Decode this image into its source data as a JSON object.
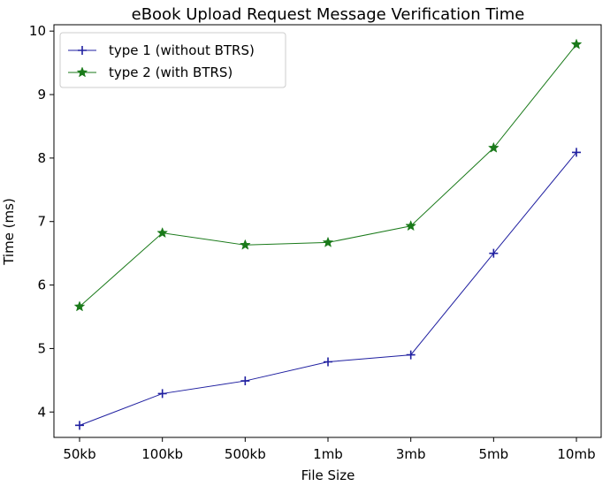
{
  "chart_data": {
    "type": "line",
    "title": "eBook Upload Request Message Verification Time",
    "xlabel": "File Size",
    "ylabel": "Time (ms)",
    "categories": [
      "50kb",
      "100kb",
      "500kb",
      "1mb",
      "3mb",
      "5mb",
      "10mb"
    ],
    "ylim": [
      3.6,
      10.1
    ],
    "yticks": [
      4,
      5,
      6,
      7,
      8,
      9,
      10
    ],
    "grid": false,
    "legend_position": "top-left",
    "series": [
      {
        "name": "type 1 (without BTRS)",
        "color": "#1f1fa0",
        "marker": "plus",
        "values": [
          3.79,
          4.29,
          4.49,
          4.79,
          4.9,
          6.5,
          8.09
        ]
      },
      {
        "name": "type 2 (with BTRS)",
        "color": "#1a7a1a",
        "marker": "star",
        "values": [
          5.66,
          6.82,
          6.63,
          6.67,
          6.93,
          8.16,
          9.79
        ]
      }
    ]
  }
}
